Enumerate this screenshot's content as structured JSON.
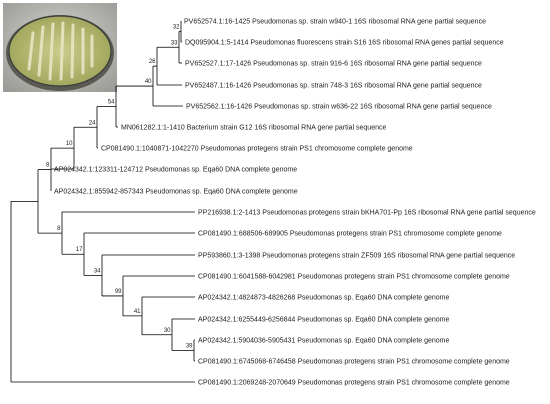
{
  "figure": {
    "photo_description": "petri-dish-culture-photo",
    "colors": {
      "branch": "#000000",
      "label": "#1c1c1c",
      "dish_rim": "#3a3a3a",
      "agar": "#bcc27a",
      "colony": "#e6e4bf"
    }
  },
  "tree": {
    "leaves": [
      "PV652574.1:16-1425 Pseudomonas sp. strain w940-1 16S ribosomal RNA gene partial sequence",
      "DQ095904.1:5-1414 Pseudomonas fluorescens strain S16 16S ribosomal RNA genes partial sequence",
      "PV652527.1:17-1426 Pseudomonas sp. strain 916-6 16S ribosomal RNA gene partial sequence",
      "PV652487.1:16-1426 Pseudomonas sp. strain 748-3 16S ribosomal RNA gene partial sequence",
      "PV652562.1:16-1426 Pseudomonas sp. strain w636-22 16S ribosomal RNA gene partial sequence",
      "MN061282.1:1-1410 Bacterium strain G12 16S ribosomal RNA gene partial sequence",
      "CP081490.1:1040871-1042270 Pseudomonas protegens strain PS1 chromosome complete genome",
      "AP024342.1:123311-124712 Pseudomonas sp. Eqa60 DNA complete genome",
      "AP024342.1:855942-857343 Pseudomonas sp. Eqa60 DNA complete genome",
      "PP216938.1:2-1413 Pseudomonas protegens strain bKHA701-Pp 16S ribosomal RNA gene partial sequence",
      "CP081490.1:688506-689905 Pseudomonas protegens strain PS1 chromosome complete genome",
      "PP593860.1:3-1398 Pseudomonas protegens strain ZF509 16S ribosomal RNA gene partial sequence",
      "CP081490.1:6041588-6042981 Pseudomonas protegens strain PS1 chromosome complete genome",
      "AP024342.1:4824873-4826268 Pseudomonas sp. Eqa60 DNA complete genome",
      "AP024342.1:6255449-6256844 Pseudomonas sp. Eqa60 DNA complete genome",
      "AP024342.1:5904036-5905431 Pseudomonas sp. Eqa60 DNA complete genome",
      "CP081490.1:6745068-6746458 Pseudomonas protegens strain PS1 chromosome complete genome",
      "CP081490.1:2069248-2070649 Pseudomonas protegens strain PS1 chromosome complete genome"
    ],
    "supports": [
      "32",
      "33",
      "26",
      "40",
      "54",
      "24",
      "10",
      "8",
      "8",
      "17",
      "34",
      "99",
      "41",
      "30",
      "39"
    ]
  }
}
